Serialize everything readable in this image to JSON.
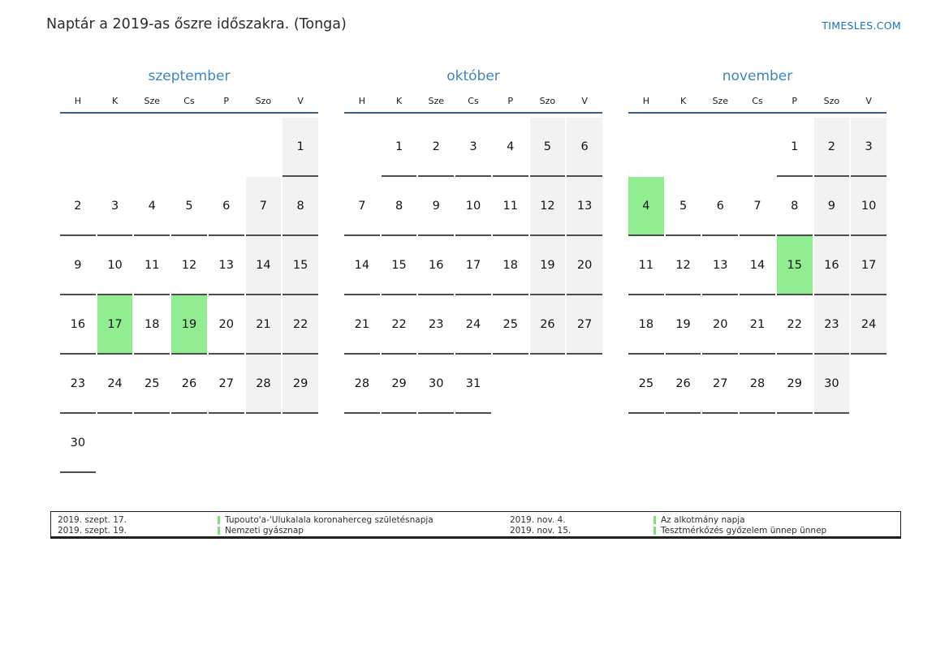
{
  "page": {
    "title": "Naptár a 2019-as őszre időszakra. (Tonga)",
    "site": "TIMESLES.COM"
  },
  "calendar": {
    "weekdays": [
      "H",
      "K",
      "Sze",
      "Cs",
      "P",
      "Szo",
      "V"
    ],
    "months": [
      {
        "name": "szeptember",
        "first_weekday_index": 6,
        "num_days": 30,
        "highlighted_days": [
          17,
          19
        ]
      },
      {
        "name": "október",
        "first_weekday_index": 1,
        "num_days": 31,
        "highlighted_days": []
      },
      {
        "name": "november",
        "first_weekday_index": 4,
        "num_days": 30,
        "highlighted_days": [
          4,
          15
        ]
      }
    ]
  },
  "legend": {
    "groups": [
      {
        "rows": [
          {
            "date": "2019. szept. 17.",
            "label": "Tupouto'a-'Ulukalala koronaherceg születésnapja"
          },
          {
            "date": "2019. szept. 19.",
            "label": "Nemzeti gyásznap"
          }
        ]
      },
      {
        "rows": [
          {
            "date": "2019. nov. 4.",
            "label": "Az alkotmány napja"
          },
          {
            "date": "2019. nov. 15.",
            "label": "Tesztmérkőzés győzelem ünnep ünnep"
          }
        ]
      }
    ]
  },
  "colors": {
    "highlight": "#90ee90",
    "weekend_bg": "#f2f2f2",
    "cell_border": "#4d4d4d",
    "header_line": "#3d5c84",
    "month_blue": "#3c85c5",
    "site_blue": "#1d6fc1",
    "legend_bar": "#7fe07f"
  }
}
